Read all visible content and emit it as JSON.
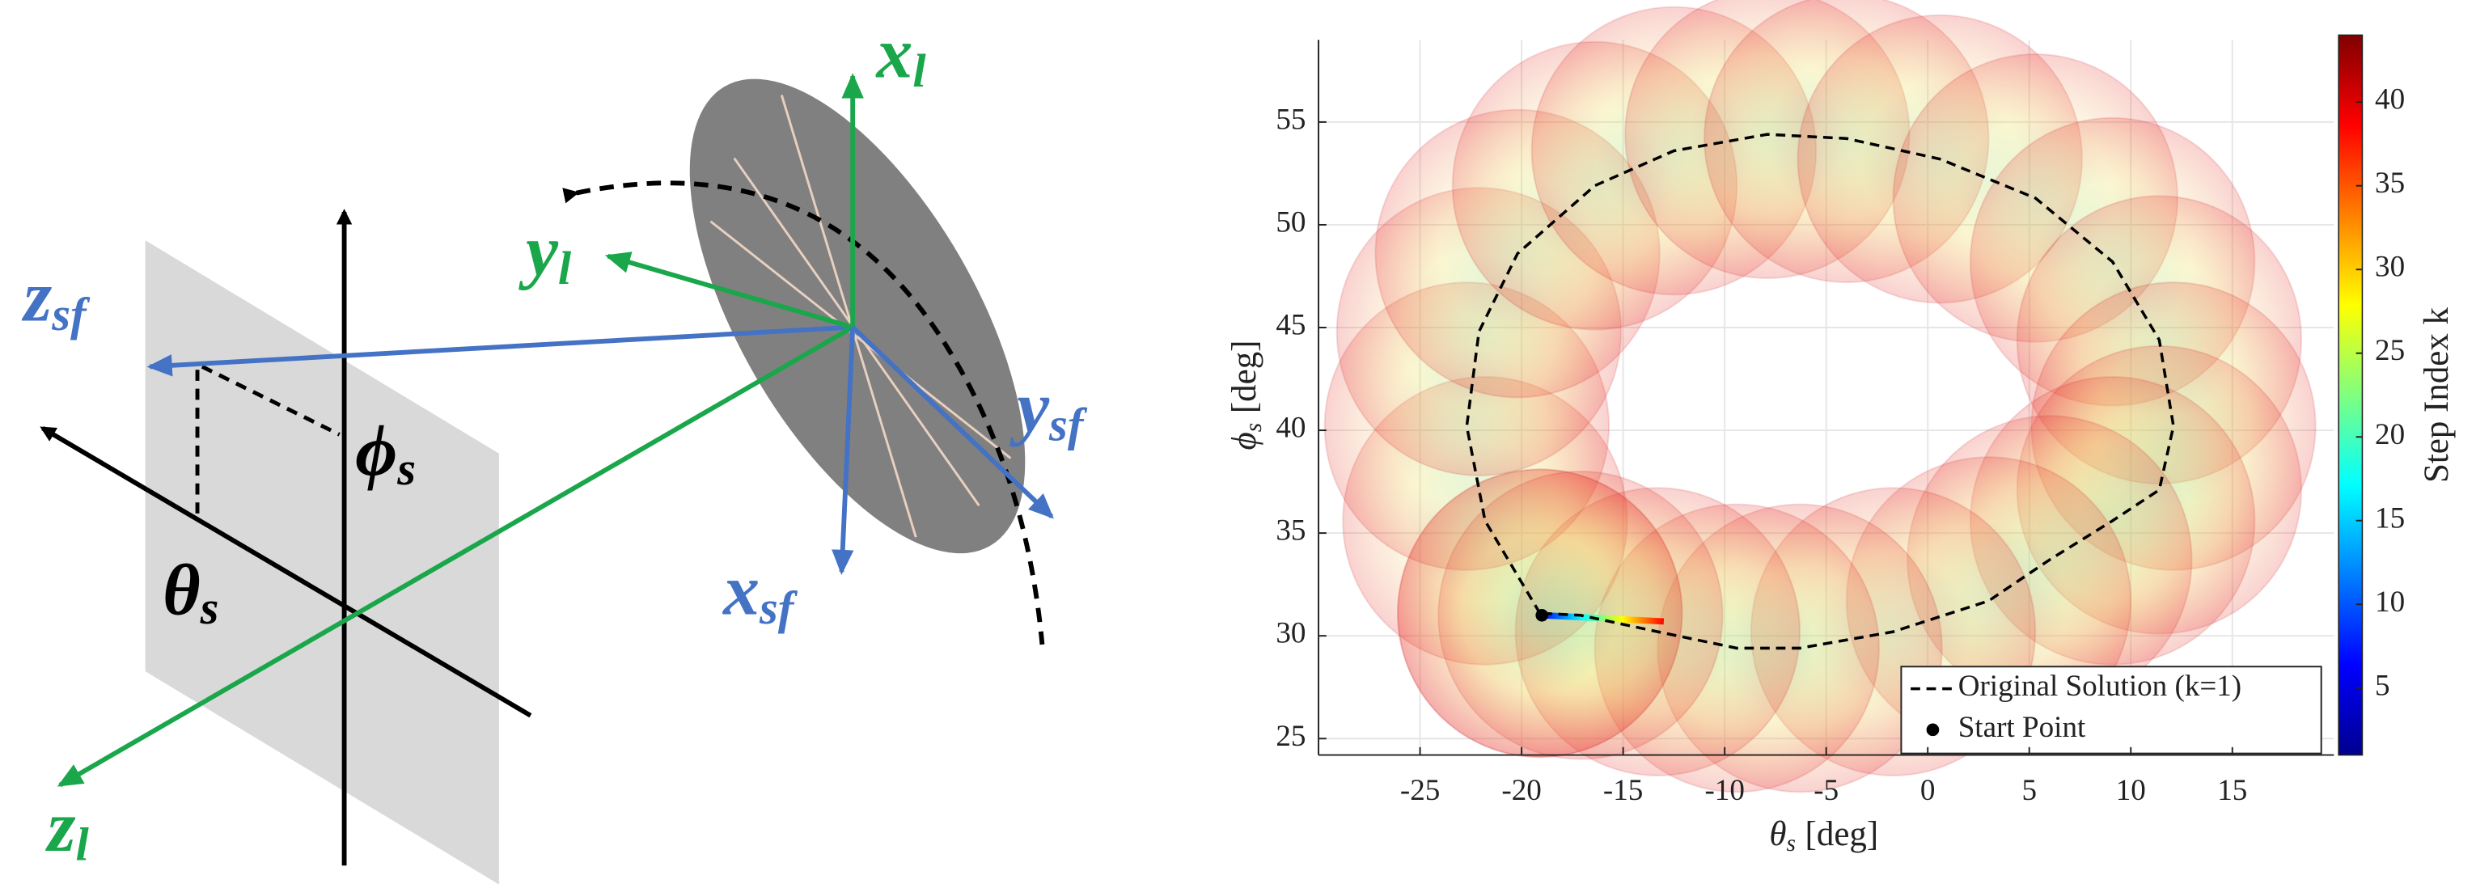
{
  "diagram": {
    "labels": [
      {
        "symbol": "x",
        "subscript": "l"
      },
      {
        "symbol": "y",
        "subscript": "l"
      },
      {
        "symbol": "z",
        "subscript": "l"
      },
      {
        "symbol": "x",
        "subscript": "sf"
      },
      {
        "symbol": "y",
        "subscript": "sf"
      },
      {
        "symbol": "z",
        "subscript": "sf"
      },
      {
        "symbol": "ϕ",
        "subscript": "s"
      },
      {
        "symbol": "θ",
        "subscript": "s"
      }
    ]
  },
  "chart_data": {
    "type": "line",
    "xlabel": {
      "symbol": "θ",
      "subscript": "s",
      "unit": "[deg]"
    },
    "ylabel": {
      "symbol": "ϕ",
      "subscript": "s",
      "unit": "[deg]"
    },
    "xlim": [
      -30,
      20
    ],
    "xticks": [
      -25,
      -20,
      -15,
      -10,
      -5,
      0,
      5,
      10,
      15
    ],
    "ylim": [
      24.2,
      59
    ],
    "yticks": [
      25,
      30,
      35,
      40,
      45,
      50,
      55
    ],
    "grid": true,
    "legend": "lower right",
    "circle_radius": 7,
    "series": [
      {
        "name": "Original Solution (k=1)",
        "color": "#000000",
        "style": "dashed",
        "x": [
          -19.1,
          -21.8,
          -22.7,
          -22.1,
          -20.2,
          -16.4,
          -12.5,
          -7.9,
          -4,
          0.6,
          5.3,
          9.1,
          11.4,
          12.1,
          11.4,
          9.1,
          6,
          3,
          -1.7,
          -6.3,
          -9.4,
          -13.3,
          -17.1,
          -19.1
        ],
        "y": [
          31.1,
          35.6,
          40.2,
          44.8,
          48.6,
          51.9,
          53.6,
          54.4,
          54.2,
          53.2,
          51.3,
          48.2,
          44.4,
          40.2,
          37.1,
          35.6,
          33.7,
          31.7,
          30.2,
          29.4,
          29.4,
          30.2,
          31,
          31.1
        ]
      },
      {
        "name": "Start Point",
        "color": "#000000",
        "x": [
          -19
        ],
        "y": [
          31
        ]
      }
    ],
    "optimized_path": {
      "x": [
        -19,
        -17,
        -15,
        -13
      ],
      "y": [
        31,
        30.9,
        30.8,
        30.7
      ]
    },
    "colorbar": {
      "label": "Step Index k",
      "colormap": "jet",
      "lim": [
        1,
        44
      ],
      "ticks": [
        5,
        10,
        15,
        20,
        25,
        30,
        35,
        40
      ]
    }
  }
}
